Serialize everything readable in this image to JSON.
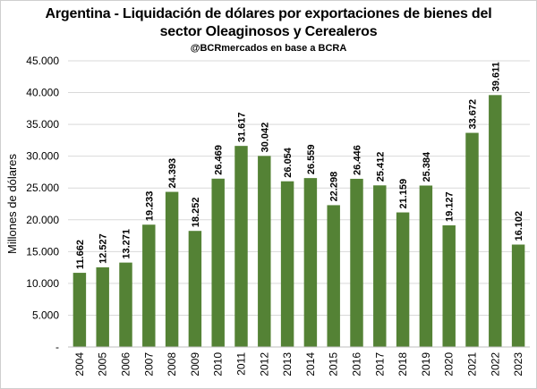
{
  "chart_data": {
    "type": "bar",
    "title": "Argentina - Liquidación de dólares por exportaciones de bienes del sector Oleaginosos y Cerealeros",
    "title_line1": "Argentina - Liquidación de dólares por exportaciones de bienes del",
    "title_line2": "sector Oleaginosos y Cerealeros",
    "subtitle": "@BCRmercados en base a BCRA",
    "xlabel": "",
    "ylabel": "Millones de dólares",
    "ylim": [
      0,
      45000
    ],
    "yticks": [
      0,
      5000,
      10000,
      15000,
      20000,
      25000,
      30000,
      35000,
      40000,
      45000
    ],
    "ytick_labels": [
      "-",
      "5.000",
      "10.000",
      "15.000",
      "20.000",
      "25.000",
      "30.000",
      "35.000",
      "40.000",
      "45.000"
    ],
    "grid": true,
    "bar_color": "#548235",
    "categories": [
      "2004",
      "2005",
      "2006",
      "2007",
      "2008",
      "2009",
      "2010",
      "2011",
      "2012",
      "2013",
      "2014",
      "2015",
      "2016",
      "2017",
      "2018",
      "2019",
      "2020",
      "2021",
      "2022",
      "2023"
    ],
    "values": [
      11662,
      12527,
      13271,
      19233,
      24393,
      18252,
      26469,
      31617,
      30042,
      26054,
      26559,
      22298,
      26446,
      25412,
      21159,
      25384,
      19127,
      33672,
      39611,
      16102
    ],
    "data_labels": [
      "11.662",
      "12.527",
      "13.271",
      "19.233",
      "24.393",
      "18.252",
      "26.469",
      "31.617",
      "30.042",
      "26.054",
      "26.559",
      "22.298",
      "26.446",
      "25.412",
      "21.159",
      "25.384",
      "19.127",
      "33.672",
      "39.611",
      "16.102"
    ]
  }
}
